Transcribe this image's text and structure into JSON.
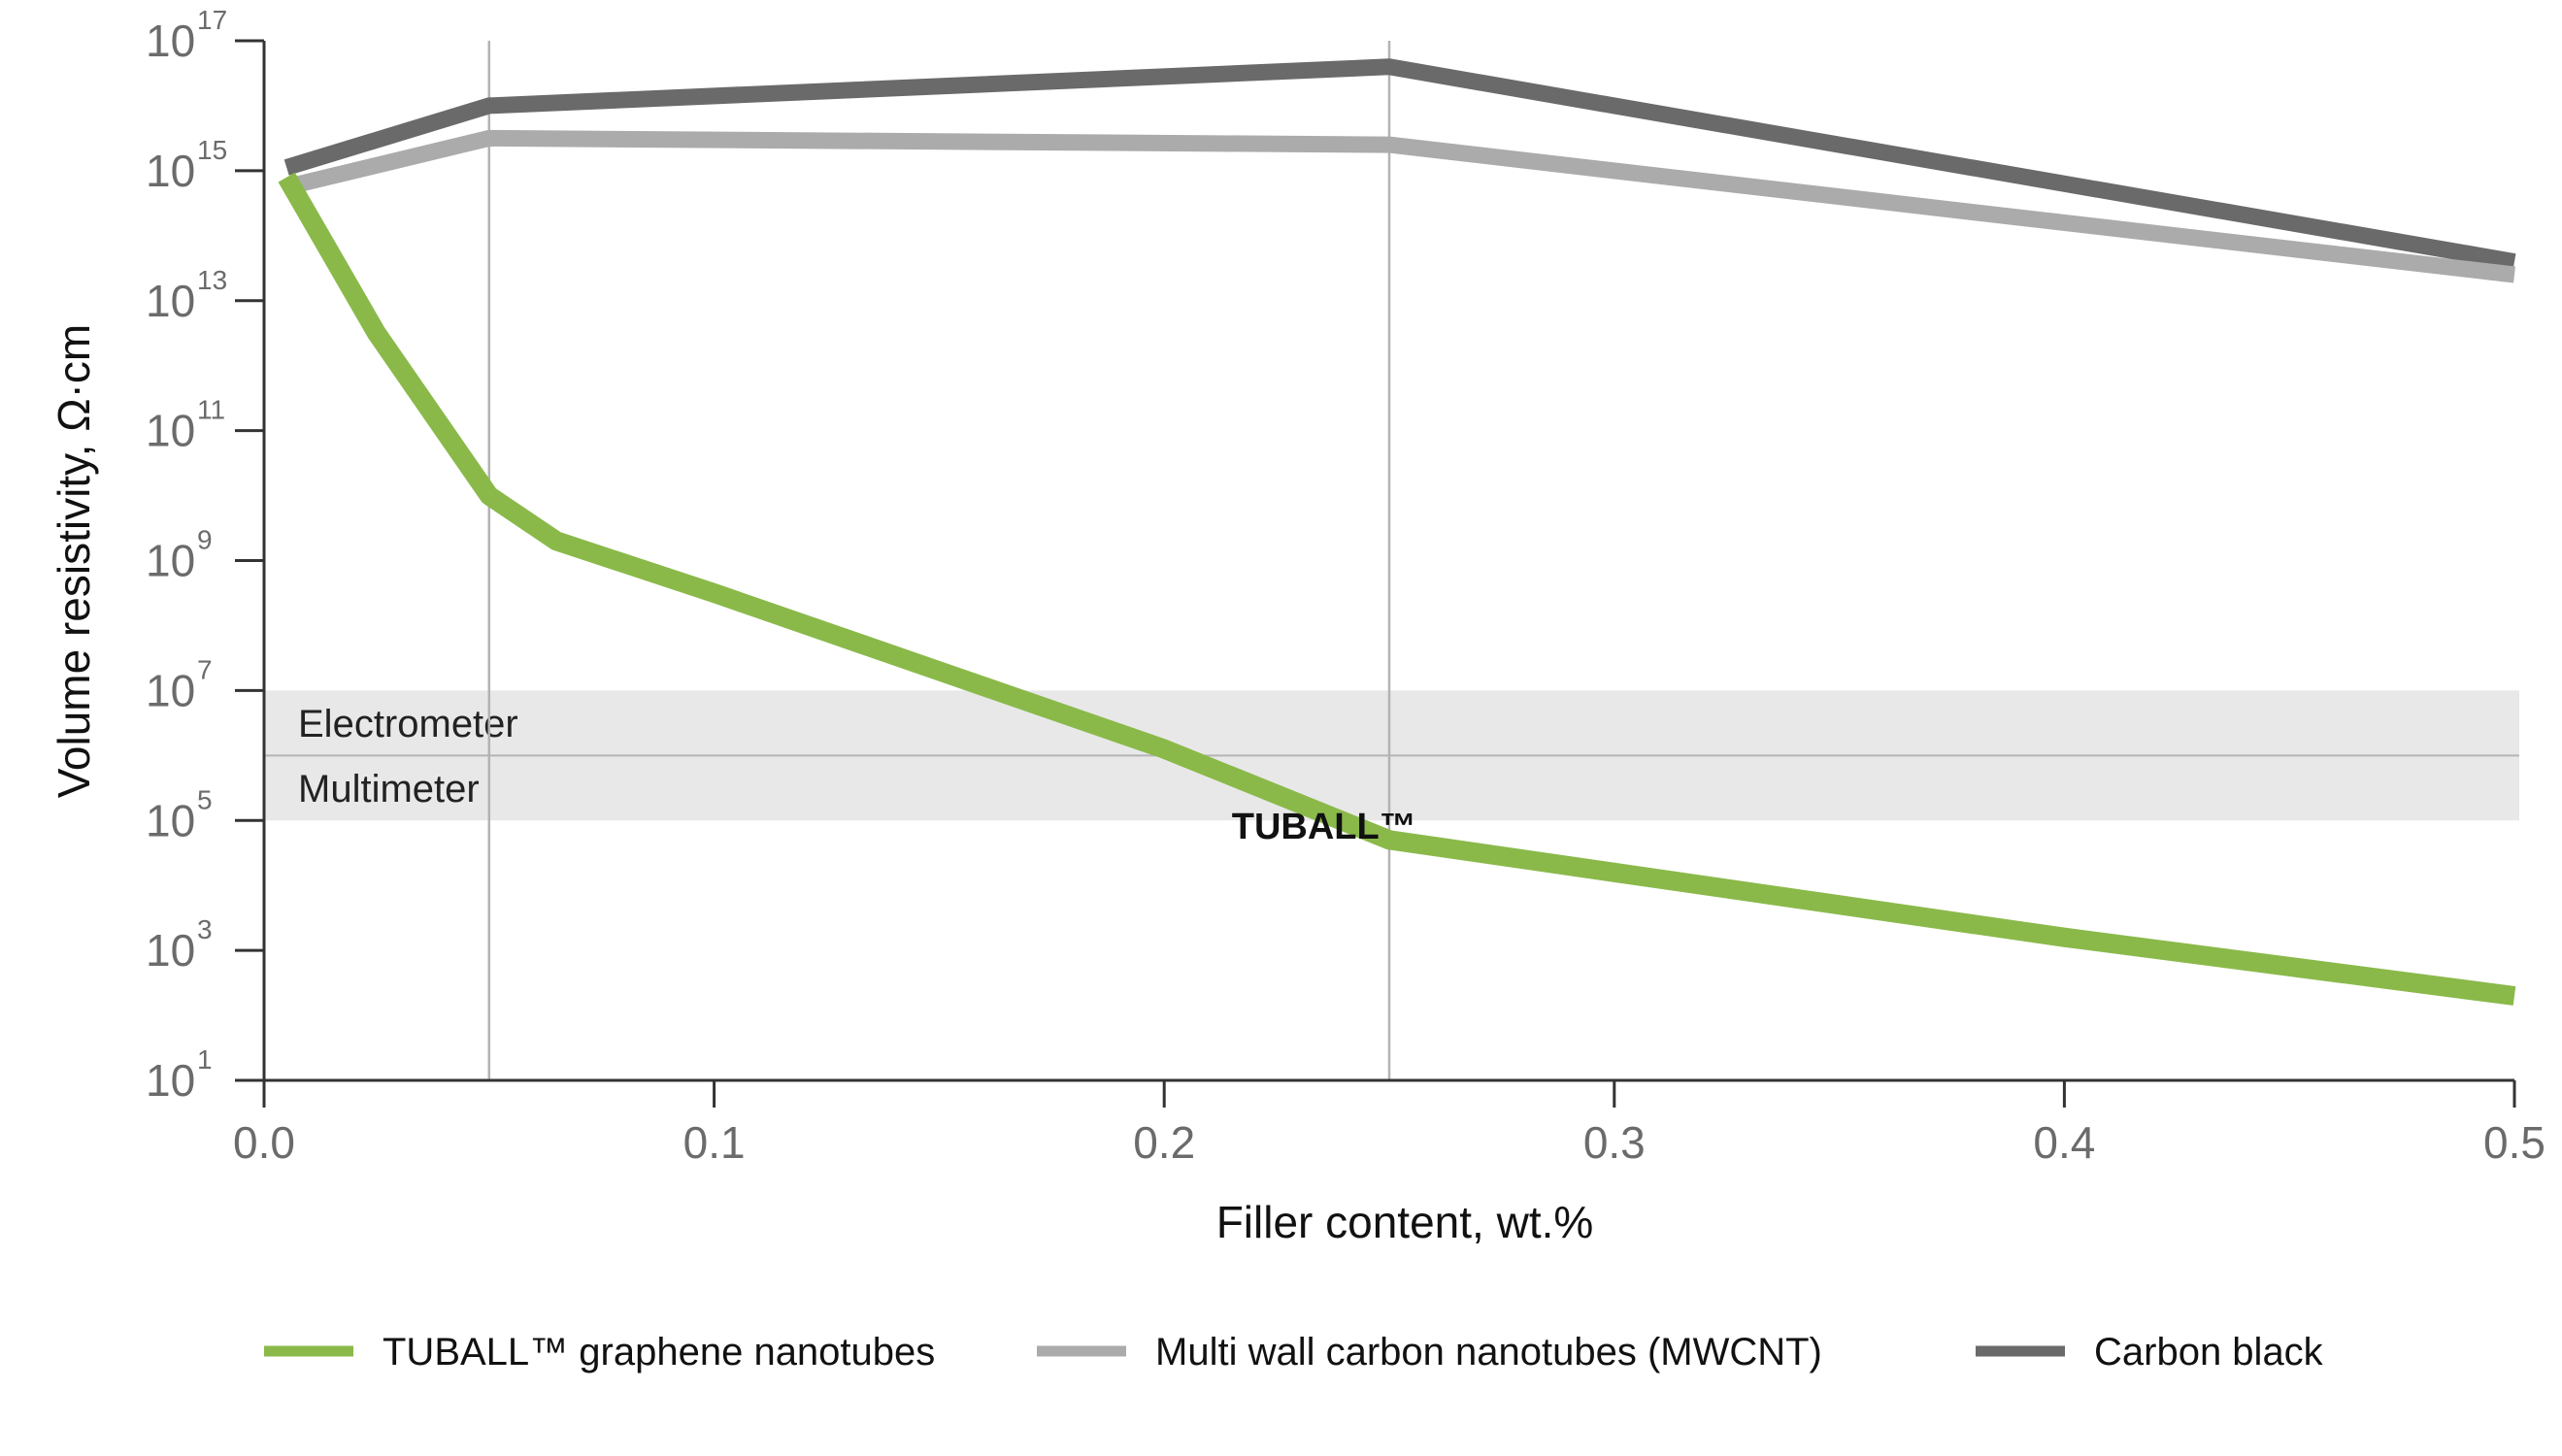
{
  "chart_data": {
    "type": "line",
    "xlabel": "Filler content, wt.%",
    "ylabel": "Volume resistivity, Ω·cm",
    "xlim": [
      0.0,
      0.5
    ],
    "ylim_log10": [
      1,
      17
    ],
    "y_scale": "log",
    "x_ticks": [
      0.0,
      0.1,
      0.2,
      0.3,
      0.4,
      0.5
    ],
    "x_tick_labels": [
      "0.0",
      "0.1",
      "0.2",
      "0.3",
      "0.4",
      "0.5"
    ],
    "y_tick_exponents": [
      1,
      3,
      5,
      7,
      9,
      11,
      13,
      15,
      17
    ],
    "y_tick_base": "10",
    "grid": {
      "vertical_at_x": [
        0.05,
        0.25
      ],
      "horizontal": false
    },
    "bands": [
      {
        "label": "Electrometer",
        "y_from_exp": 6,
        "y_to_exp": 7
      },
      {
        "label": "Multimeter",
        "y_from_exp": 5,
        "y_to_exp": 6
      }
    ],
    "annotations": [
      {
        "text": "TUBALL™",
        "x": 0.215,
        "y_exp": 4.9
      }
    ],
    "legend_position": "bottom",
    "series": [
      {
        "name": "TUBALL™ graphene nanotubes",
        "color": "#8ab94a",
        "x": [
          0.005,
          0.025,
          0.05,
          0.065,
          0.1,
          0.15,
          0.2,
          0.25,
          0.3,
          0.4,
          0.5
        ],
        "y_exp": [
          14.9,
          12.5,
          10.0,
          9.3,
          8.5,
          7.3,
          6.1,
          4.7,
          4.2,
          3.2,
          2.3
        ]
      },
      {
        "name": "Multi wall carbon nanotubes (MWCNT)",
        "color": "#ababab",
        "x": [
          0.005,
          0.05,
          0.25,
          0.5
        ],
        "y_exp": [
          14.75,
          15.5,
          15.4,
          13.4
        ]
      },
      {
        "name": "Carbon black",
        "color": "#6a6a6a",
        "x": [
          0.005,
          0.05,
          0.25,
          0.5
        ],
        "y_exp": [
          15.05,
          16.0,
          16.6,
          13.6
        ]
      }
    ]
  }
}
